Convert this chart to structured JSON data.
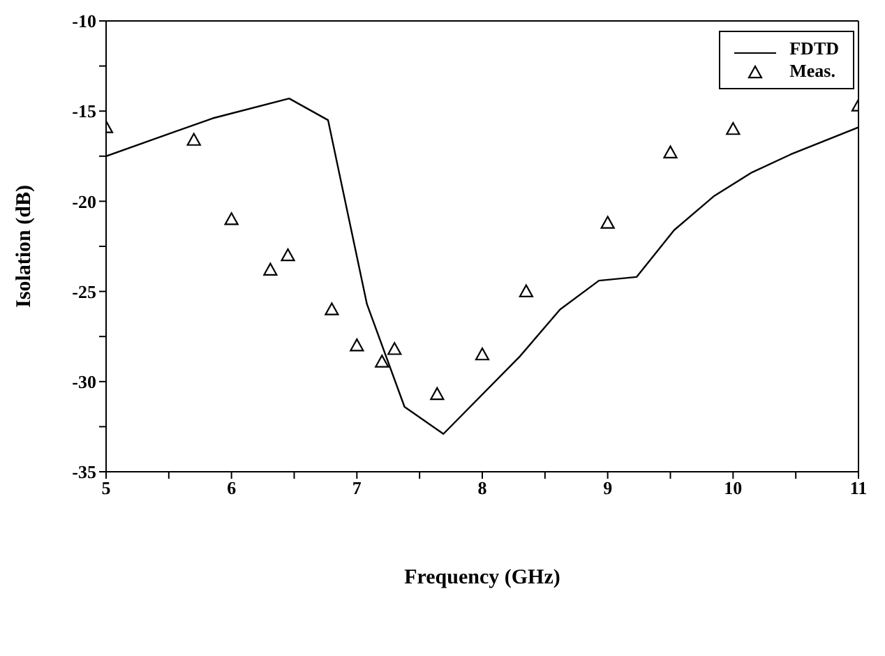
{
  "chart_data": {
    "type": "line",
    "xlabel": "Frequency (GHz)",
    "ylabel": "Isolation (dB)",
    "xlim": [
      5,
      11
    ],
    "xticks": [
      5,
      {
        "value": 5.5,
        "label": null
      },
      6,
      {
        "value": 6.5,
        "label": null
      },
      7,
      {
        "value": 7.5,
        "label": null
      },
      8,
      {
        "value": 8.5,
        "label": null
      },
      9,
      {
        "value": 9.5,
        "label": null
      },
      10,
      {
        "value": 10.5,
        "label": null
      },
      11
    ],
    "ylim": [
      -35,
      -10
    ],
    "yticks": [
      -35,
      {
        "value": -32.5,
        "label": null
      },
      -30,
      {
        "value": -27.5,
        "label": null
      },
      -25,
      {
        "value": -22.5,
        "label": null
      },
      -20,
      {
        "value": -17.5,
        "label": null
      },
      -15,
      {
        "value": -12.5,
        "label": null
      },
      -10
    ],
    "grid": false,
    "legend": "top right",
    "series": [
      {
        "name": "FDTD",
        "color": "#000000",
        "marker": "none",
        "line_style": "solid",
        "x": [
          5,
          5.85,
          6.46,
          6.77,
          7.08,
          7.38,
          7.69,
          8.3,
          8.62,
          8.93,
          9.23,
          9.53,
          9.85,
          10.15,
          10.46,
          11
        ],
        "values": [
          -17.5,
          -15.4,
          -14.3,
          -15.5,
          -25.7,
          -31.4,
          -32.9,
          -28.6,
          -26,
          -24.4,
          -24.2,
          -21.6,
          -19.7,
          -18.4,
          -17.4,
          -15.9
        ]
      },
      {
        "name": "Meas.",
        "type": "scatter",
        "color": "#000000",
        "marker": "triangle",
        "x": [
          5,
          5.7,
          6,
          6.31,
          6.45,
          6.8,
          7,
          7.2,
          7.3,
          7.64,
          8,
          8.35,
          9,
          9.5,
          10,
          11
        ],
        "values": [
          -15.9,
          -16.6,
          -21,
          -23.8,
          -23,
          -26,
          -28,
          -28.9,
          -28.2,
          -30.7,
          -28.5,
          -25,
          -21.2,
          -17.3,
          -16,
          -14.7
        ]
      }
    ]
  }
}
